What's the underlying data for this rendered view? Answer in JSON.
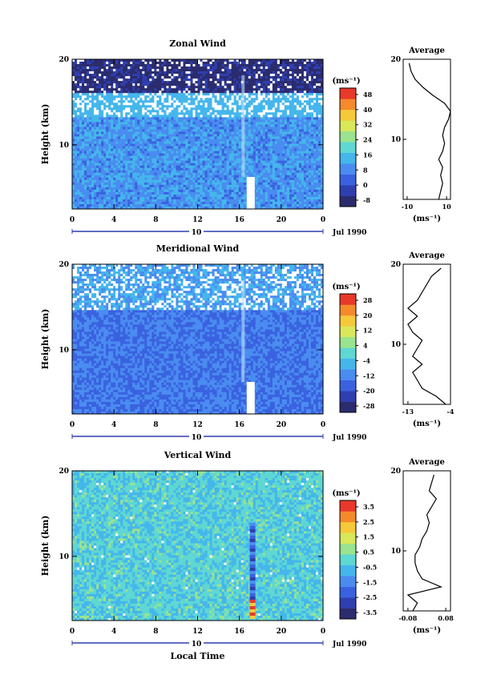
{
  "chart_data": [
    {
      "type": "heatmap",
      "title": "Zonal Wind",
      "ylabel": "Height (km)",
      "xlabel": "",
      "unit_label": "(ms⁻¹)",
      "date_label": "Jul 1990",
      "day_label": "10",
      "x_ticks": [
        "0",
        "4",
        "8",
        "12",
        "16",
        "20",
        "0"
      ],
      "y_ticks": [
        "10",
        "20"
      ],
      "xlim": [
        0,
        24
      ],
      "ylim": [
        2.5,
        20
      ],
      "colorbar_ticks": [
        "48",
        "40",
        "32",
        "24",
        "16",
        "8",
        "0",
        "-8"
      ],
      "profile": {
        "title": "Average",
        "x_ticks": [
          "-10",
          "10"
        ],
        "xlim": [
          -12,
          12
        ],
        "y_ticks": [
          "10",
          "20"
        ],
        "xlabel": "(ms⁻¹)",
        "heights": [
          2.5,
          3.5,
          4.5,
          5.5,
          6.5,
          7.5,
          8.5,
          9.5,
          10.5,
          11.5,
          12.5,
          13.5,
          14.5,
          15.5,
          16.5,
          17.5,
          18.5,
          19.5
        ],
        "values": [
          6,
          7,
          8,
          7,
          8,
          6,
          8,
          9,
          8,
          9,
          11,
          12,
          9,
          3,
          -2,
          -6,
          -8,
          -9
        ]
      }
    },
    {
      "type": "heatmap",
      "title": "Meridional Wind",
      "ylabel": "Height (km)",
      "xlabel": "",
      "unit_label": "(ms⁻¹)",
      "date_label": "Jul 1990",
      "day_label": "10",
      "x_ticks": [
        "0",
        "4",
        "8",
        "12",
        "16",
        "20",
        "0"
      ],
      "y_ticks": [
        "10",
        "20"
      ],
      "xlim": [
        0,
        24
      ],
      "ylim": [
        2.5,
        20
      ],
      "colorbar_ticks": [
        "28",
        "20",
        "12",
        "4",
        "-4",
        "-12",
        "-20",
        "-28"
      ],
      "profile": {
        "title": "Average",
        "x_ticks": [
          "-13",
          "-4"
        ],
        "xlim": [
          -14,
          -4
        ],
        "y_ticks": [
          "10",
          "20"
        ],
        "xlabel": "(ms⁻¹)",
        "heights": [
          2.5,
          3.5,
          4.5,
          5.5,
          6.5,
          7.5,
          8.5,
          9.5,
          10.5,
          11.5,
          12.5,
          13.5,
          14.5,
          15.5,
          16.5,
          17.5,
          18.5,
          19.5
        ],
        "values": [
          -5,
          -7,
          -10,
          -11,
          -12,
          -10,
          -12,
          -11,
          -10,
          -12,
          -13,
          -11,
          -13,
          -11,
          -10,
          -9,
          -8,
          -6
        ]
      }
    },
    {
      "type": "heatmap",
      "title": "Vertical Wind",
      "ylabel": "Height (km)",
      "xlabel": "Local Time",
      "unit_label": "(ms⁻¹)",
      "date_label": "Jul 1990",
      "day_label": "10",
      "x_ticks": [
        "0",
        "4",
        "8",
        "12",
        "16",
        "20",
        "0"
      ],
      "y_ticks": [
        "10",
        "20"
      ],
      "xlim": [
        0,
        24
      ],
      "ylim": [
        2.5,
        20
      ],
      "colorbar_ticks": [
        "3.5",
        "2.5",
        "1.5",
        "0.5",
        "-0.5",
        "-1.5",
        "-2.5",
        "-3.5"
      ],
      "profile": {
        "title": "Average",
        "x_ticks": [
          "-0.08",
          "0.08"
        ],
        "xlim": [
          -0.1,
          0.1
        ],
        "y_ticks": [
          "10",
          "20"
        ],
        "xlabel": "(ms⁻¹)",
        "heights": [
          2.5,
          3.5,
          4.5,
          5.5,
          6.5,
          7.5,
          8.5,
          9.5,
          10.5,
          11.5,
          12.5,
          13.5,
          14.5,
          15.5,
          16.5,
          17.5,
          18.5,
          19.5
        ],
        "values": [
          -0.06,
          -0.04,
          -0.08,
          0.06,
          -0.02,
          -0.04,
          -0.05,
          -0.05,
          -0.03,
          -0.02,
          0.0,
          0.01,
          0.0,
          0.02,
          0.04,
          0.01,
          0.02,
          0.03
        ]
      }
    }
  ]
}
